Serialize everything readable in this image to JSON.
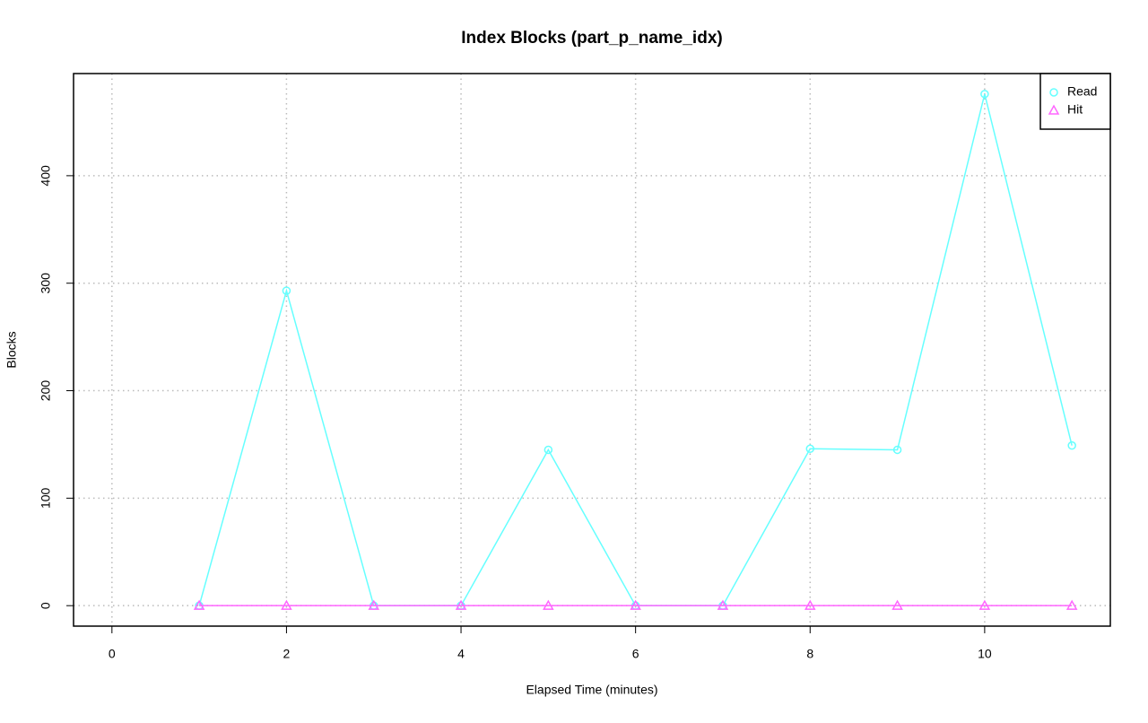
{
  "chart_data": {
    "type": "line",
    "title": "Index Blocks (part_p_name_idx)",
    "x_label": "Elapsed Time (minutes)",
    "y_label": "Blocks",
    "x": [
      1,
      2,
      3,
      4,
      5,
      6,
      7,
      8,
      9,
      10,
      11
    ],
    "series": [
      {
        "name": "Read",
        "color": "#66ffff",
        "marker": "circle",
        "values": [
          0,
          293,
          0,
          0,
          145,
          0,
          0,
          146,
          145,
          476,
          149
        ]
      },
      {
        "name": "Hit",
        "color": "#ff66ff",
        "marker": "triangle",
        "values": [
          0,
          0,
          0,
          0,
          0,
          0,
          0,
          0,
          0,
          0,
          0
        ]
      }
    ],
    "xlim": [
      -0.44,
      11.44
    ],
    "ylim": [
      -19.04,
      495.04
    ],
    "xticks": [
      0,
      2,
      4,
      6,
      8,
      10
    ],
    "yticks": [
      0,
      100,
      200,
      300,
      400
    ],
    "grid": true,
    "legend": "top-right"
  }
}
